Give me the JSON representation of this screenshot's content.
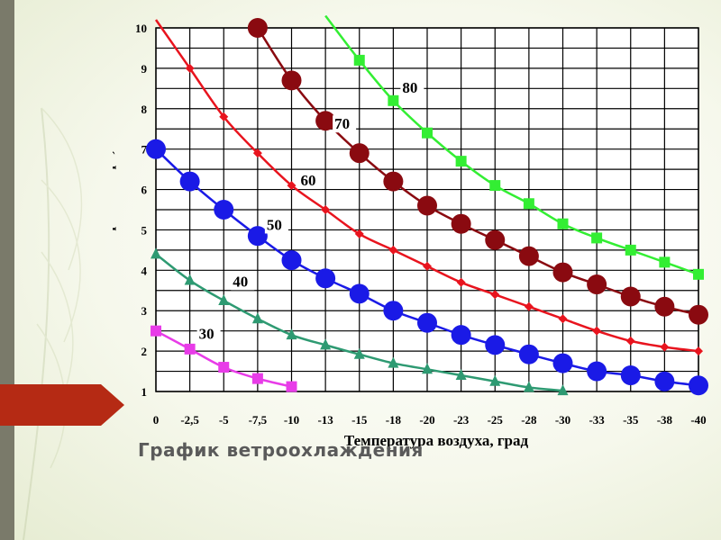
{
  "slide": {
    "title": "График ветроохлаждения"
  },
  "chart_data": {
    "type": "line",
    "title": "",
    "xlabel": "Температура воздуха, град",
    "ylabel": "Скорость ветра, м/с",
    "categories": [
      "0",
      "-2,5",
      "-5",
      "-7,5",
      "-10",
      "-13",
      "-15",
      "-18",
      "-20",
      "-23",
      "-25",
      "-28",
      "-30",
      "-33",
      "-35",
      "-38",
      "-40"
    ],
    "yticks": [
      "1",
      "2",
      "3",
      "4",
      "5",
      "6",
      "7",
      "8",
      "9",
      "10"
    ],
    "ylim": [
      1,
      10
    ],
    "grid": true,
    "series": [
      {
        "name": "30",
        "color": "#e83ce8",
        "marker": "square",
        "values": [
          2.5,
          2.05,
          1.6,
          1.32,
          1.12,
          null,
          null,
          null,
          null,
          null,
          null,
          null,
          null,
          null,
          null,
          null,
          null
        ]
      },
      {
        "name": "40",
        "color": "#2e9a72",
        "marker": "triangle",
        "values": [
          4.4,
          3.75,
          3.25,
          2.8,
          2.4,
          2.15,
          1.92,
          1.7,
          1.55,
          1.4,
          1.25,
          1.1,
          1.02,
          null,
          null,
          null,
          null
        ]
      },
      {
        "name": "50",
        "color": "#1a1ae6",
        "marker": "circle",
        "values": [
          7.0,
          6.2,
          5.5,
          4.85,
          4.25,
          3.8,
          3.42,
          3.0,
          2.7,
          2.4,
          2.15,
          1.92,
          1.7,
          1.5,
          1.4,
          1.25,
          1.15
        ]
      },
      {
        "name": "60",
        "color": "#e8141e",
        "marker": "diamond",
        "values": [
          10.2,
          9.0,
          7.8,
          6.9,
          6.1,
          5.5,
          4.9,
          4.5,
          4.1,
          3.7,
          3.4,
          3.1,
          2.8,
          2.5,
          2.25,
          2.1,
          2.0
        ]
      },
      {
        "name": "70",
        "color": "#8a0a10",
        "marker": "circle",
        "values": [
          null,
          null,
          null,
          10.0,
          8.7,
          7.7,
          6.9,
          6.2,
          5.6,
          5.15,
          4.75,
          4.35,
          3.95,
          3.65,
          3.35,
          3.1,
          2.9
        ]
      },
      {
        "name": "80",
        "color": "#33ee33",
        "marker": "square",
        "values": [
          null,
          null,
          null,
          null,
          null,
          10.3,
          9.2,
          8.2,
          7.4,
          6.7,
          6.1,
          5.65,
          5.15,
          4.8,
          4.5,
          4.2,
          3.9
        ]
      }
    ],
    "series_labels": [
      "30",
      "40",
      "50",
      "60",
      "70",
      "80"
    ]
  }
}
